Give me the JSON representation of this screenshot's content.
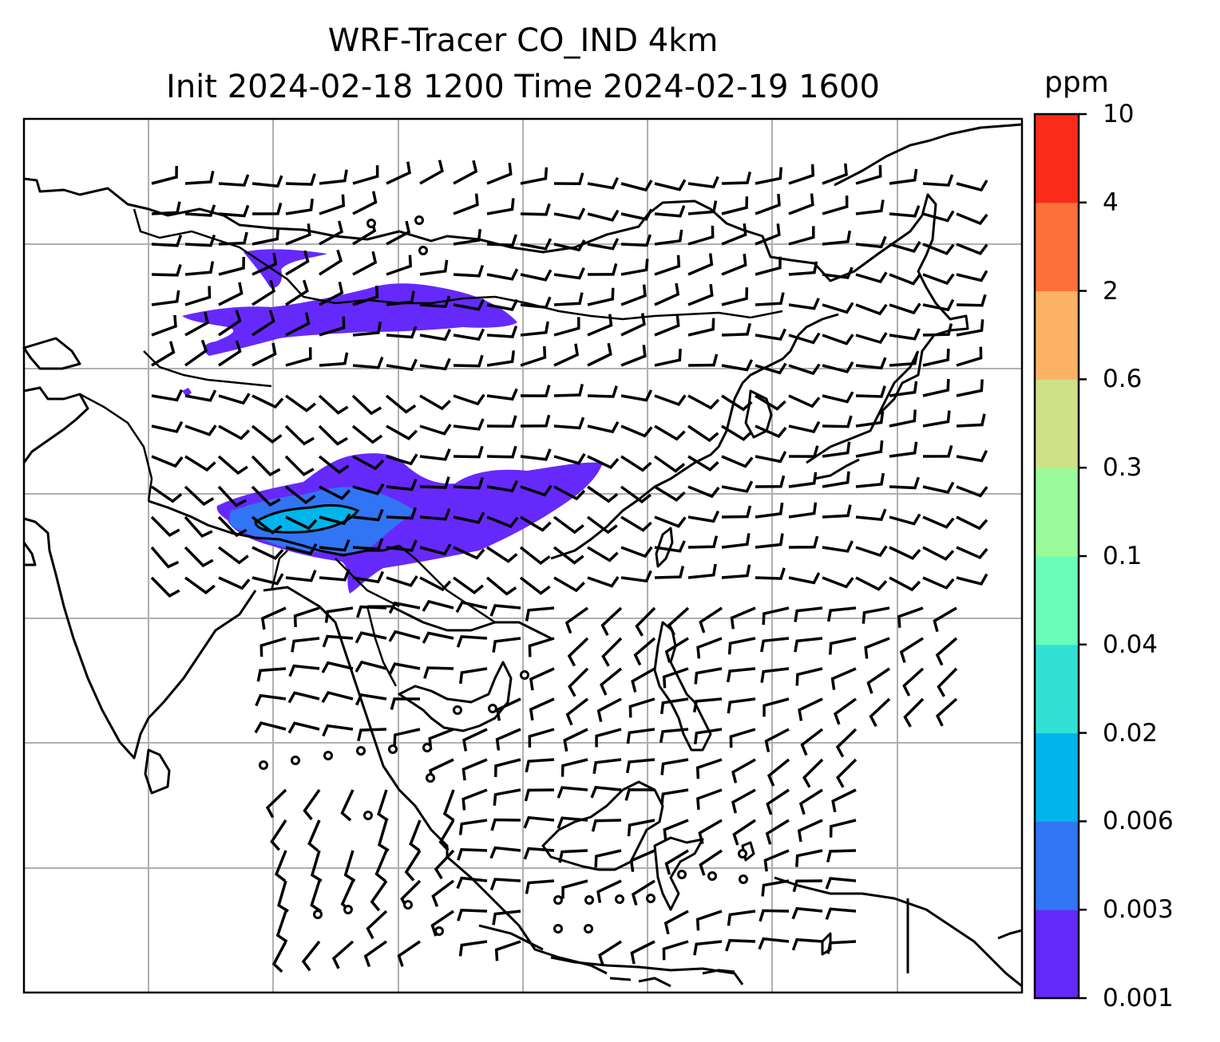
{
  "title": {
    "line1": "WRF-Tracer CO_IND 4km",
    "line2": "Init 2024-02-18 1200 Time 2024-02-19 1600"
  },
  "colorbar": {
    "unit": "ppm",
    "levels": [
      "0.001",
      "0.003",
      "0.006",
      "0.02",
      "0.04",
      "0.1",
      "0.3",
      "0.6",
      "2",
      "4",
      "10"
    ],
    "colors": [
      "#6629fb",
      "#3175f4",
      "#00b4ec",
      "#33e1d4",
      "#6afcbb",
      "#9afb9b",
      "#cfe087",
      "#fdb365",
      "#fd703a",
      "#fb2b1a"
    ]
  },
  "map": {
    "layers": [
      "coastlines",
      "borders",
      "gridlines",
      "wind-barbs",
      "co-tracer-contours"
    ],
    "wind_barbs": "black",
    "coast_color": "#000000",
    "grid_color": "#b0b0b0"
  }
}
